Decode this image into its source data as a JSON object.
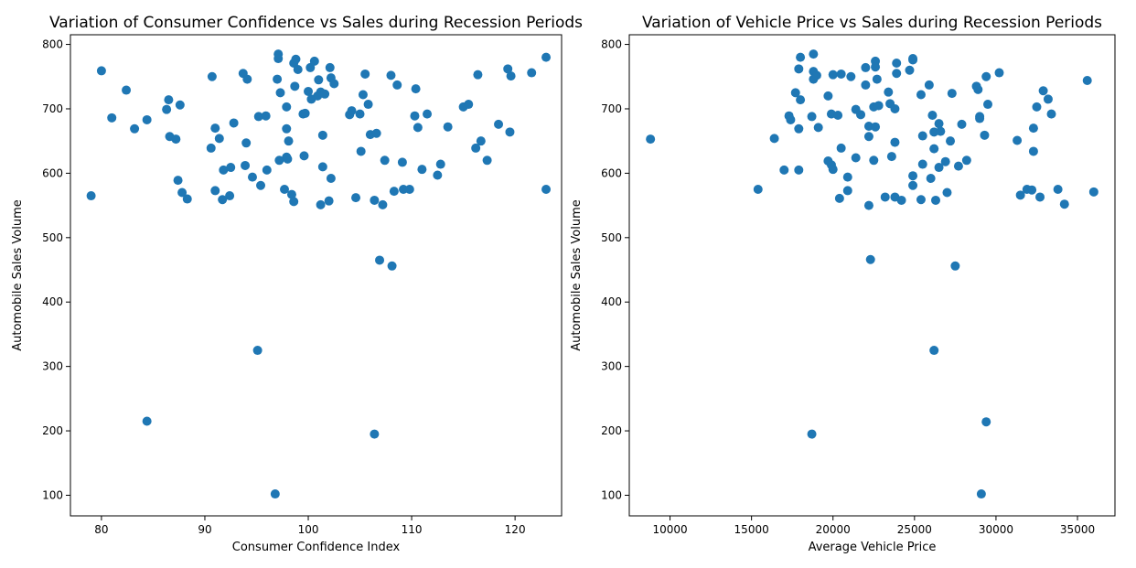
{
  "chart_data": [
    {
      "type": "scatter",
      "title": "Variation of Consumer Confidence vs Sales during Recession Periods",
      "xlabel": "Consumer Confidence Index",
      "ylabel": "Automobile Sales Volume",
      "xlim": [
        77,
        124.5
      ],
      "ylim": [
        68,
        815
      ],
      "xticks": [
        80,
        90,
        100,
        110,
        120
      ],
      "yticks": [
        100,
        200,
        300,
        400,
        500,
        600,
        700,
        800
      ],
      "grid": false,
      "color": "#1f77b4",
      "points": [
        [
          79.0,
          565
        ],
        [
          80.0,
          759
        ],
        [
          81.0,
          686
        ],
        [
          82.4,
          729
        ],
        [
          83.2,
          669
        ],
        [
          84.4,
          683
        ],
        [
          84.4,
          215
        ],
        [
          86.3,
          699
        ],
        [
          86.5,
          714
        ],
        [
          86.6,
          657
        ],
        [
          87.2,
          653
        ],
        [
          87.4,
          589
        ],
        [
          87.6,
          706
        ],
        [
          87.8,
          570
        ],
        [
          88.3,
          560
        ],
        [
          90.6,
          639
        ],
        [
          90.7,
          750
        ],
        [
          91.0,
          670
        ],
        [
          91.0,
          573
        ],
        [
          91.4,
          654
        ],
        [
          91.7,
          559
        ],
        [
          91.8,
          605
        ],
        [
          92.4,
          565
        ],
        [
          92.5,
          609
        ],
        [
          92.8,
          678
        ],
        [
          93.7,
          755
        ],
        [
          93.9,
          612
        ],
        [
          94.0,
          647
        ],
        [
          94.1,
          746
        ],
        [
          94.6,
          594
        ],
        [
          95.1,
          325
        ],
        [
          95.2,
          688
        ],
        [
          95.4,
          581
        ],
        [
          95.9,
          689
        ],
        [
          96.0,
          605
        ],
        [
          96.8,
          102
        ],
        [
          97.0,
          746
        ],
        [
          97.1,
          785
        ],
        [
          97.1,
          778
        ],
        [
          97.2,
          620
        ],
        [
          97.3,
          725
        ],
        [
          97.7,
          575
        ],
        [
          97.9,
          703
        ],
        [
          97.9,
          669
        ],
        [
          97.9,
          625
        ],
        [
          98.0,
          622
        ],
        [
          98.1,
          650
        ],
        [
          98.4,
          567
        ],
        [
          98.6,
          556
        ],
        [
          98.6,
          771
        ],
        [
          98.7,
          735
        ],
        [
          98.8,
          777
        ],
        [
          99.0,
          761
        ],
        [
          99.5,
          692
        ],
        [
          99.6,
          627
        ],
        [
          99.7,
          693
        ],
        [
          100.0,
          727
        ],
        [
          100.2,
          764
        ],
        [
          100.3,
          715
        ],
        [
          100.6,
          774
        ],
        [
          100.9,
          720
        ],
        [
          101.0,
          745
        ],
        [
          101.2,
          551
        ],
        [
          101.2,
          726
        ],
        [
          101.4,
          610
        ],
        [
          101.4,
          659
        ],
        [
          101.6,
          723
        ],
        [
          102.0,
          557
        ],
        [
          102.1,
          764
        ],
        [
          102.2,
          592
        ],
        [
          102.2,
          748
        ],
        [
          102.5,
          739
        ],
        [
          104.0,
          691
        ],
        [
          104.2,
          697
        ],
        [
          104.6,
          562
        ],
        [
          105.0,
          692
        ],
        [
          105.1,
          634
        ],
        [
          105.3,
          722
        ],
        [
          105.5,
          754
        ],
        [
          105.8,
          707
        ],
        [
          106.0,
          660
        ],
        [
          106.4,
          558
        ],
        [
          106.4,
          195
        ],
        [
          106.6,
          662
        ],
        [
          106.9,
          465
        ],
        [
          107.2,
          551
        ],
        [
          107.4,
          620
        ],
        [
          108.0,
          752
        ],
        [
          108.1,
          456
        ],
        [
          108.3,
          572
        ],
        [
          108.6,
          737
        ],
        [
          109.1,
          617
        ],
        [
          109.2,
          575
        ],
        [
          109.8,
          575
        ],
        [
          110.3,
          689
        ],
        [
          110.4,
          731
        ],
        [
          110.6,
          671
        ],
        [
          111.0,
          606
        ],
        [
          111.5,
          692
        ],
        [
          112.5,
          597
        ],
        [
          112.8,
          614
        ],
        [
          113.5,
          672
        ],
        [
          115.0,
          703
        ],
        [
          115.5,
          707
        ],
        [
          116.2,
          639
        ],
        [
          116.4,
          753
        ],
        [
          116.7,
          650
        ],
        [
          117.3,
          620
        ],
        [
          118.4,
          676
        ],
        [
          119.3,
          762
        ],
        [
          119.5,
          664
        ],
        [
          119.6,
          751
        ],
        [
          121.6,
          756
        ],
        [
          123.0,
          575
        ],
        [
          123.0,
          780
        ]
      ]
    },
    {
      "type": "scatter",
      "title": "Variation of Vehicle Price vs Sales during Recession Periods",
      "xlabel": "Average Vehicle Price",
      "ylabel": "Automobile Sales Volume",
      "xlim": [
        7500,
        37300
      ],
      "ylim": [
        68,
        815
      ],
      "xticks": [
        10000,
        15000,
        20000,
        25000,
        30000,
        35000
      ],
      "yticks": [
        100,
        200,
        300,
        400,
        500,
        600,
        700,
        800
      ],
      "grid": false,
      "color": "#1f77b4",
      "points": [
        [
          8800,
          653
        ],
        [
          15400,
          575
        ],
        [
          16400,
          654
        ],
        [
          17000,
          605
        ],
        [
          17300,
          689
        ],
        [
          17400,
          683
        ],
        [
          17700,
          725
        ],
        [
          17900,
          605
        ],
        [
          17900,
          762
        ],
        [
          17900,
          669
        ],
        [
          18000,
          780
        ],
        [
          18000,
          714
        ],
        [
          18700,
          688
        ],
        [
          18700,
          195
        ],
        [
          18800,
          746
        ],
        [
          18800,
          758
        ],
        [
          18800,
          785
        ],
        [
          19000,
          752
        ],
        [
          19100,
          671
        ],
        [
          19700,
          619
        ],
        [
          19700,
          720
        ],
        [
          19900,
          613
        ],
        [
          19900,
          692
        ],
        [
          20000,
          753
        ],
        [
          20000,
          606
        ],
        [
          20300,
          690
        ],
        [
          20400,
          561
        ],
        [
          20500,
          754
        ],
        [
          20500,
          639
        ],
        [
          20900,
          594
        ],
        [
          20900,
          573
        ],
        [
          21100,
          750
        ],
        [
          21400,
          699
        ],
        [
          21400,
          624
        ],
        [
          21700,
          691
        ],
        [
          22000,
          737
        ],
        [
          22000,
          764
        ],
        [
          22200,
          673
        ],
        [
          22200,
          550
        ],
        [
          22200,
          657
        ],
        [
          22300,
          466
        ],
        [
          22500,
          703
        ],
        [
          22500,
          620
        ],
        [
          22600,
          672
        ],
        [
          22600,
          774
        ],
        [
          22600,
          765
        ],
        [
          22700,
          746
        ],
        [
          22800,
          705
        ],
        [
          23200,
          563
        ],
        [
          23400,
          726
        ],
        [
          23500,
          708
        ],
        [
          23600,
          626
        ],
        [
          23800,
          700
        ],
        [
          23800,
          563
        ],
        [
          23800,
          648
        ],
        [
          23900,
          771
        ],
        [
          23900,
          755
        ],
        [
          24200,
          558
        ],
        [
          24700,
          760
        ],
        [
          24900,
          778
        ],
        [
          24900,
          776
        ],
        [
          24900,
          581
        ],
        [
          24900,
          596
        ],
        [
          25400,
          722
        ],
        [
          25500,
          658
        ],
        [
          25500,
          614
        ],
        [
          25400,
          559
        ],
        [
          25900,
          737
        ],
        [
          26000,
          592
        ],
        [
          26100,
          690
        ],
        [
          26200,
          638
        ],
        [
          26200,
          664
        ],
        [
          26200,
          325
        ],
        [
          26300,
          558
        ],
        [
          26500,
          677
        ],
        [
          26500,
          609
        ],
        [
          26600,
          665
        ],
        [
          26900,
          618
        ],
        [
          27000,
          570
        ],
        [
          27200,
          650
        ],
        [
          27300,
          724
        ],
        [
          27500,
          456
        ],
        [
          27700,
          611
        ],
        [
          27900,
          676
        ],
        [
          28200,
          620
        ],
        [
          28800,
          735
        ],
        [
          28900,
          730
        ],
        [
          29000,
          688
        ],
        [
          29000,
          685
        ],
        [
          29100,
          102
        ],
        [
          29300,
          659
        ],
        [
          29400,
          214
        ],
        [
          29400,
          750
        ],
        [
          29500,
          707
        ],
        [
          30200,
          756
        ],
        [
          31300,
          651
        ],
        [
          31500,
          566
        ],
        [
          31900,
          575
        ],
        [
          32200,
          574
        ],
        [
          32300,
          634
        ],
        [
          32300,
          670
        ],
        [
          32500,
          703
        ],
        [
          32700,
          563
        ],
        [
          32900,
          728
        ],
        [
          33200,
          715
        ],
        [
          33400,
          692
        ],
        [
          33800,
          575
        ],
        [
          34200,
          552
        ],
        [
          35600,
          744
        ],
        [
          36000,
          571
        ]
      ]
    }
  ]
}
